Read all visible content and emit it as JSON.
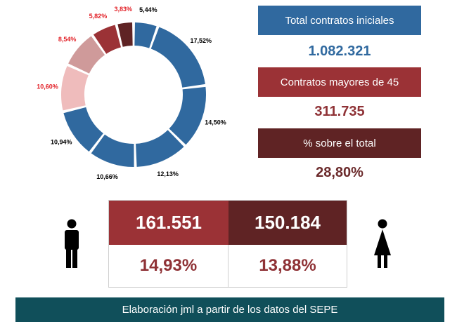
{
  "chart_data": {
    "type": "pie",
    "values": [
      5.44,
      17.52,
      14.5,
      12.13,
      10.66,
      10.94,
      10.6,
      8.54,
      5.82,
      3.83
    ],
    "labels": [
      "5,44%",
      "17,52%",
      "14,50%",
      "12,13%",
      "10,66%",
      "10,94%",
      "10,60%",
      "8,54%",
      "5,82%",
      "3,83%"
    ],
    "colors": [
      "#30699f",
      "#30699f",
      "#30699f",
      "#30699f",
      "#30699f",
      "#30699f",
      "#efbcbc",
      "#cf9a9a",
      "#9b3236",
      "#5f2324"
    ],
    "label_colors": [
      "#000000",
      "#000000",
      "#000000",
      "#000000",
      "#000000",
      "#000000",
      "#e21f26",
      "#e21f26",
      "#e21f26",
      "#e21f26"
    ],
    "style": "donut"
  },
  "summary": {
    "total_label": "Total contratos iniciales",
    "total_value": "1.082.321",
    "over45_label": "Contratos mayores de 45",
    "over45_value": "311.735",
    "percent_label": "% sobre el total",
    "percent_value": "28,80%"
  },
  "gender": {
    "men_count": "161.551",
    "women_count": "150.184",
    "men_percent": "14,93%",
    "women_percent": "13,88%"
  },
  "footer": "Elaboración jml a partir de los datos del SEPE",
  "colors": {
    "blue": "#30699f",
    "red": "#9b3236",
    "dark_red": "#5f2324",
    "teal": "#104f5a"
  }
}
